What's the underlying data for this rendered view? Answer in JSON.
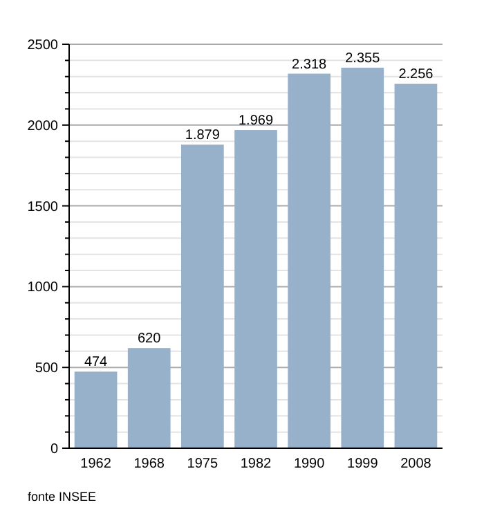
{
  "chart_data": {
    "type": "bar",
    "categories": [
      "1962",
      "1968",
      "1975",
      "1982",
      "1990",
      "1999",
      "2008"
    ],
    "values": [
      474,
      620,
      1879,
      1969,
      2318,
      2355,
      2256
    ],
    "value_labels": [
      "474",
      "620",
      "1.879",
      "1.969",
      "2.318",
      "2.355",
      "2.256"
    ],
    "color": "#98b1cb",
    "ylim": [
      0,
      2500
    ],
    "yticks": [
      0,
      {
        "value": 100,
        "label": null
      },
      {
        "value": 200,
        "label": null
      },
      {
        "value": 300,
        "label": null
      },
      {
        "value": 400,
        "label": null
      },
      500,
      {
        "value": 600,
        "label": null
      },
      {
        "value": 700,
        "label": null
      },
      {
        "value": 800,
        "label": null
      },
      {
        "value": 900,
        "label": null
      },
      1000,
      {
        "value": 1100,
        "label": null
      },
      {
        "value": 1200,
        "label": null
      },
      {
        "value": 1300,
        "label": null
      },
      {
        "value": 1400,
        "label": null
      },
      1500,
      {
        "value": 1600,
        "label": null
      },
      {
        "value": 1700,
        "label": null
      },
      {
        "value": 1800,
        "label": null
      },
      {
        "value": 1900,
        "label": null
      },
      2000,
      {
        "value": 2100,
        "label": null
      },
      {
        "value": 2200,
        "label": null
      },
      {
        "value": 2300,
        "label": null
      },
      {
        "value": 2400,
        "label": null
      },
      2500
    ],
    "grid": "y",
    "annotations": [
      "fonte INSEE"
    ]
  }
}
